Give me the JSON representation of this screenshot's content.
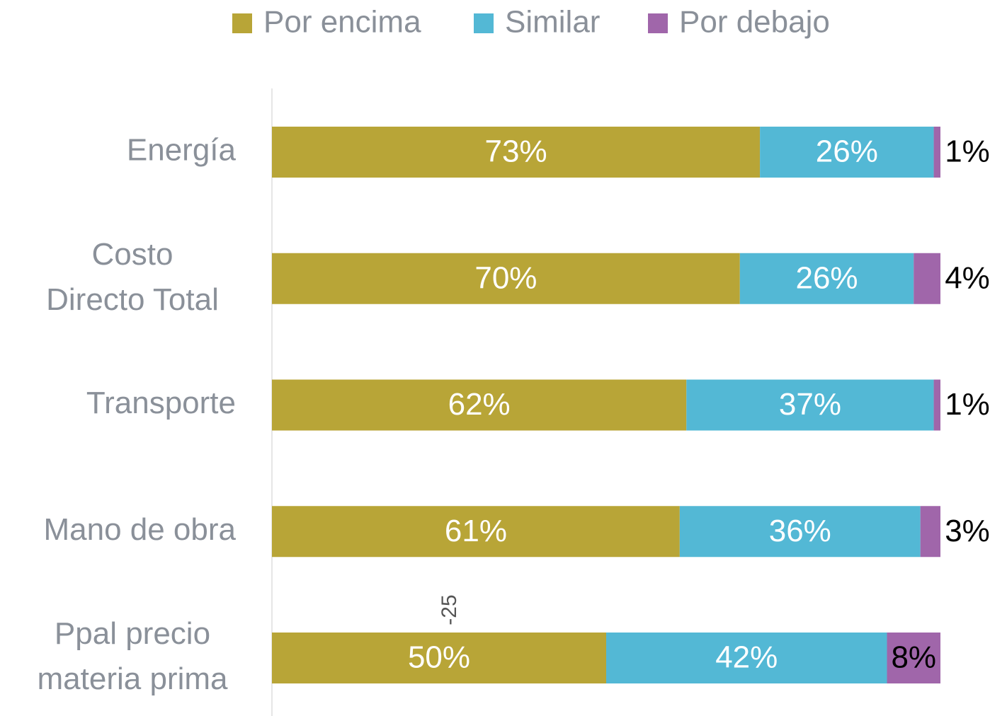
{
  "chart_data": {
    "type": "stacked-bar-horizontal",
    "categories": [
      "Energía",
      "Costo Directo Total",
      "Transporte",
      "Mano de obra",
      "Ppal precio materia prima"
    ],
    "series": [
      {
        "name": "Por encima",
        "color": "#b8a537",
        "label_color": "#ffffff",
        "values": [
          73,
          70,
          62,
          61,
          50
        ],
        "value_labels": [
          "73%",
          "70%",
          "62%",
          "61%",
          "50%"
        ]
      },
      {
        "name": "Similar",
        "color": "#53b8d5",
        "label_color": "#ffffff",
        "values": [
          26,
          26,
          37,
          36,
          42
        ],
        "value_labels": [
          "26%",
          "26%",
          "37%",
          "36%",
          "42%"
        ]
      },
      {
        "name": "Por debajo",
        "color": "#a066aa",
        "label_color": "#000000",
        "values": [
          1,
          4,
          1,
          3,
          8
        ],
        "value_labels": [
          "1%",
          "4%",
          "1%",
          "3%",
          "8%"
        ]
      }
    ],
    "xlim": [
      0,
      100
    ],
    "annotation": "-25",
    "legend": "top"
  }
}
